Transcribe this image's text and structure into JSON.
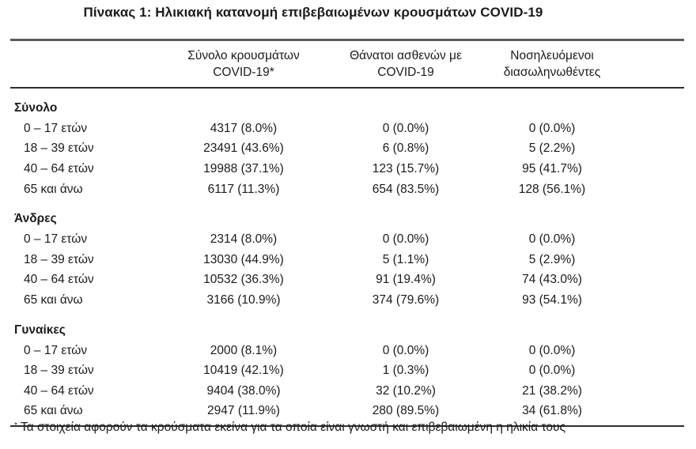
{
  "title": "Πίνακας 1: Ηλικιακή κατανομή επιβεβαιωμένων κρουσμάτων COVID-19",
  "header": {
    "cases": [
      "Σύνολο κρουσμάτων",
      "COVID-19*"
    ],
    "deaths": [
      "Θάνατοι ασθενών με",
      "COVID-19"
    ],
    "intubated": [
      "Νοσηλευόμενοι",
      "διασωληνωθέντες"
    ]
  },
  "sections": [
    {
      "label": "Σύνολο",
      "rows": [
        {
          "age": "0 – 17 ετών",
          "cases": "4317 (8.0%)",
          "deaths": "0 (0.0%)",
          "intubated": "0 (0.0%)"
        },
        {
          "age": "18 – 39 ετών",
          "cases": "23491 (43.6%)",
          "deaths": "6 (0.8%)",
          "intubated": "5 (2.2%)"
        },
        {
          "age": "40 – 64 ετών",
          "cases": "19988 (37.1%)",
          "deaths": "123 (15.7%)",
          "intubated": "95 (41.7%)"
        },
        {
          "age": "65 και άνω",
          "cases": "6117 (11.3%)",
          "deaths": "654 (83.5%)",
          "intubated": "128 (56.1%)"
        }
      ]
    },
    {
      "label": "Άνδρες",
      "rows": [
        {
          "age": "0 – 17 ετών",
          "cases": "2314 (8.0%)",
          "deaths": "0 (0.0%)",
          "intubated": "0 (0.0%)"
        },
        {
          "age": "18 – 39 ετών",
          "cases": "13030 (44.9%)",
          "deaths": "5 (1.1%)",
          "intubated": "5 (2.9%)"
        },
        {
          "age": "40 – 64 ετών",
          "cases": "10532 (36.3%)",
          "deaths": "91 (19.4%)",
          "intubated": "74 (43.0%)"
        },
        {
          "age": "65 και άνω",
          "cases": "3166 (10.9%)",
          "deaths": "374 (79.6%)",
          "intubated": "93 (54.1%)"
        }
      ]
    },
    {
      "label": "Γυναίκες",
      "rows": [
        {
          "age": "0 – 17 ετών",
          "cases": "2000 (8.1%)",
          "deaths": "0 (0.0%)",
          "intubated": "0 (0.0%)"
        },
        {
          "age": "18 – 39 ετών",
          "cases": "10419 (42.1%)",
          "deaths": "1 (0.3%)",
          "intubated": "0 (0.0%)"
        },
        {
          "age": "40 – 64 ετών",
          "cases": "9404 (38.0%)",
          "deaths": "32 (10.2%)",
          "intubated": "21 (38.2%)"
        },
        {
          "age": "65 και άνω",
          "cases": "2947 (11.9%)",
          "deaths": "280 (89.5%)",
          "intubated": "34 (61.8%)"
        }
      ]
    }
  ],
  "footnote": {
    "marker": "*",
    "text": "Τα στοιχεία αφορούν τα κρούσματα εκείνα για τα οποία είναι γνωστή και επιβεβαιωμένη η ηλικία τους"
  },
  "colors": {
    "text": "#1b1b1b",
    "rule_top": "#5c5c5c",
    "rule": "#2e2e2e"
  }
}
